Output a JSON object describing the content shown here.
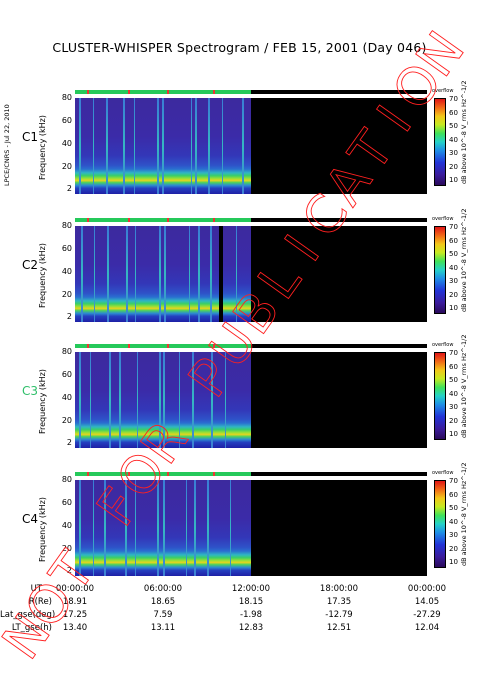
{
  "title": "CLUSTER-WHISPER Spectrogram / FEB 15, 2001 (Day 046)",
  "side_stamp": "LPCE/CNRS - Jul 22, 2010",
  "watermark": "NOT FOR PUBLICATION",
  "colorbar": {
    "top_label": "overflow",
    "ticks": [
      "70",
      "60",
      "50",
      "40",
      "30",
      "20",
      "10"
    ],
    "unit": "dB above 10^-8 V_rms Hz^-1/2",
    "colors": [
      "#2a0a5a",
      "#3b1c9c",
      "#2233d6",
      "#1f8ee6",
      "#25d1c9",
      "#3fe15a",
      "#c5ea22",
      "#f2c81a",
      "#f16a18",
      "#e01616"
    ]
  },
  "chart_data": [
    {
      "type": "heatmap",
      "satellite": "C1",
      "label_color": "#000000",
      "ylabel": "Frequency (kHz)",
      "yticks": [
        "80",
        "60",
        "40",
        "20",
        "2"
      ],
      "ylim": [
        2,
        80
      ],
      "xlim": [
        "00:00:00",
        "24:00:00"
      ],
      "data_coverage": [
        "00:00:00",
        "12:00:00"
      ],
      "data_gaps": [],
      "streaks_hours": [
        0.3,
        1.2,
        2.1,
        3.3,
        4.0,
        5.6,
        5.9,
        7.9,
        8.2,
        9.1,
        10.0,
        11.4
      ]
    },
    {
      "type": "heatmap",
      "satellite": "C2",
      "label_color": "#000000",
      "ylabel": "Frequency (kHz)",
      "yticks": [
        "80",
        "60",
        "40",
        "20",
        "2"
      ],
      "ylim": [
        2,
        80
      ],
      "xlim": [
        "00:00:00",
        "24:00:00"
      ],
      "data_coverage": [
        "00:00:00",
        "12:00:00"
      ],
      "data_gaps": [
        9.8
      ],
      "streaks_hours": [
        0.4,
        1.3,
        2.2,
        3.5,
        4.1,
        5.7,
        6.1,
        7.8,
        8.4,
        9.2,
        11.0
      ]
    },
    {
      "type": "heatmap",
      "satellite": "C3",
      "label_color": "#2fbf6a",
      "ylabel": "Frequency (kHz)",
      "yticks": [
        "80",
        "60",
        "40",
        "20",
        "2"
      ],
      "ylim": [
        2,
        80
      ],
      "xlim": [
        "00:00:00",
        "24:00:00"
      ],
      "data_coverage": [
        "00:00:00",
        "12:00:00"
      ],
      "data_gaps": [],
      "streaks_hours": [
        0.3,
        1.0,
        2.3,
        3.0,
        4.2,
        5.7,
        6.0,
        7.1,
        8.0,
        9.3,
        10.2
      ]
    },
    {
      "type": "heatmap",
      "satellite": "C4",
      "label_color": "#000000",
      "ylabel": "Frequency (kHz)",
      "yticks": [
        "80",
        "60",
        "40",
        "20",
        "2"
      ],
      "ylim": [
        2,
        80
      ],
      "xlim": [
        "00:00:00",
        "24:00:00"
      ],
      "data_coverage": [
        "00:00:00",
        "12:00:00"
      ],
      "data_gaps": [],
      "streaks_hours": [
        0.3,
        1.2,
        2.0,
        3.4,
        4.1,
        5.6,
        6.0,
        7.6,
        8.1,
        9.0,
        10.6
      ]
    }
  ],
  "orbit_table": {
    "rows": [
      {
        "label": "UT",
        "values": [
          "00:00:00",
          "06:00:00",
          "12:00:00",
          "18:00:00",
          "00:00:00"
        ]
      },
      {
        "label": "R(Re)",
        "values": [
          "18.91",
          "18.65",
          "18.15",
          "17.35",
          "14.05"
        ]
      },
      {
        "label": "Lat_gse(deg)",
        "values": [
          "17.25",
          "7.59",
          "-1.98",
          "-12.79",
          "-27.29"
        ]
      },
      {
        "label": "LT_gse(h)",
        "values": [
          "13.40",
          "13.11",
          "12.83",
          "12.51",
          "12.04"
        ]
      }
    ]
  }
}
